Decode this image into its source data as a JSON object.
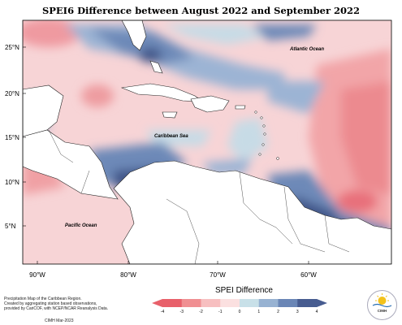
{
  "title": "SPEI6 Difference between August 2022 and September 2022",
  "lat_labels": [
    "25°N",
    "20°N",
    "15°N",
    "10°N",
    "5°N"
  ],
  "lon_labels": [
    "90°W",
    "80°W",
    "70°W",
    "60°W"
  ],
  "oceans": {
    "atlantic": "Atlantic Ocean",
    "caribbean": "Caribbean Sea",
    "pacific": "Pacific Ocean"
  },
  "footnote": {
    "line1": "Precipitation Map of the Caribbean Region.",
    "line2": "Created by aggregating station based observations,",
    "line3": "provided by CariCOF, with NCEP/NCAR Reanalysis Data.",
    "credit": "CIMH Mar-2023"
  },
  "legend": {
    "title": "SPEI Difference",
    "ticks": [
      "-4",
      "-3",
      "-2",
      "-1",
      "0",
      "1",
      "2",
      "3",
      "4"
    ],
    "colors": [
      "#e8606a",
      "#f08f92",
      "#f7bfc0",
      "#fbe0e0",
      "#c8e0e8",
      "#97b2d2",
      "#6a86b6",
      "#475c90"
    ]
  },
  "logo": {
    "text": "CIMH"
  },
  "colors": {
    "land": "#ffffff",
    "neutral": "#f7d8d8"
  }
}
